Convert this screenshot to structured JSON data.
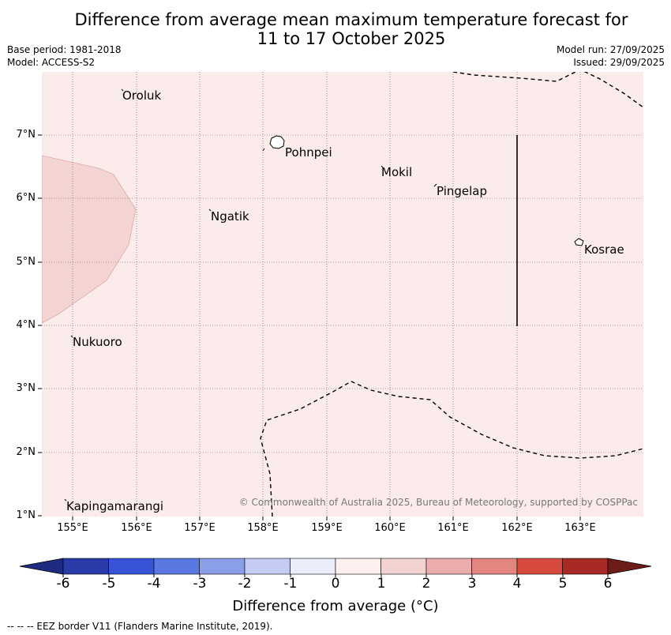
{
  "title": {
    "line1": "Difference from average mean maximum temperature forecast for",
    "line2": "11 to 17 October 2025"
  },
  "meta_left": {
    "base_period": "Base period: 1981-2018",
    "model": "Model: ACCESS-S2"
  },
  "meta_right": {
    "model_run": "Model run: 27/09/2025",
    "issued": "Issued: 29/09/2025"
  },
  "map": {
    "lat_ticks": [
      "7°N",
      "6°N",
      "5°N",
      "4°N",
      "3°N",
      "2°N",
      "1°N"
    ],
    "lon_ticks": [
      "155°E",
      "156°E",
      "157°E",
      "158°E",
      "159°E",
      "160°E",
      "161°E",
      "162°E",
      "163°E"
    ],
    "places": {
      "oroluk": "Oroluk",
      "pohnpei": "Pohnpei",
      "mokil": "Mokil",
      "pingelap": "Pingelap",
      "ngatik": "Ngatik",
      "kosrae": "Kosrae",
      "nukuoro": "Nukuoro",
      "kapingamarangi": "Kapingamarangi"
    },
    "copyright": "© Commonwealth of Australia 2025, Bureau of Meteorology, supported by COSPPac",
    "background_category_color": "#fbebea",
    "warm_patch_color": "#f4d4d3"
  },
  "colorbar": {
    "labels": [
      "-6",
      "-5",
      "-4",
      "-3",
      "-2",
      "-1",
      "0",
      "1",
      "2",
      "3",
      "4",
      "5",
      "6"
    ],
    "colors": [
      "#2a3aa8",
      "#3754d8",
      "#5a78e2",
      "#8b9ee8",
      "#c5ccf3",
      "#ecedfb",
      "#fdf0ee",
      "#f3d3d2",
      "#ecaeac",
      "#e38680",
      "#d84a40",
      "#a82a24"
    ],
    "under_color": "#1d2b80",
    "over_color": "#6e1c18",
    "title": "Difference from average (°C)"
  },
  "footer": "-- -- -- EEZ border V11 (Flanders Marine Institute, 2019)."
}
